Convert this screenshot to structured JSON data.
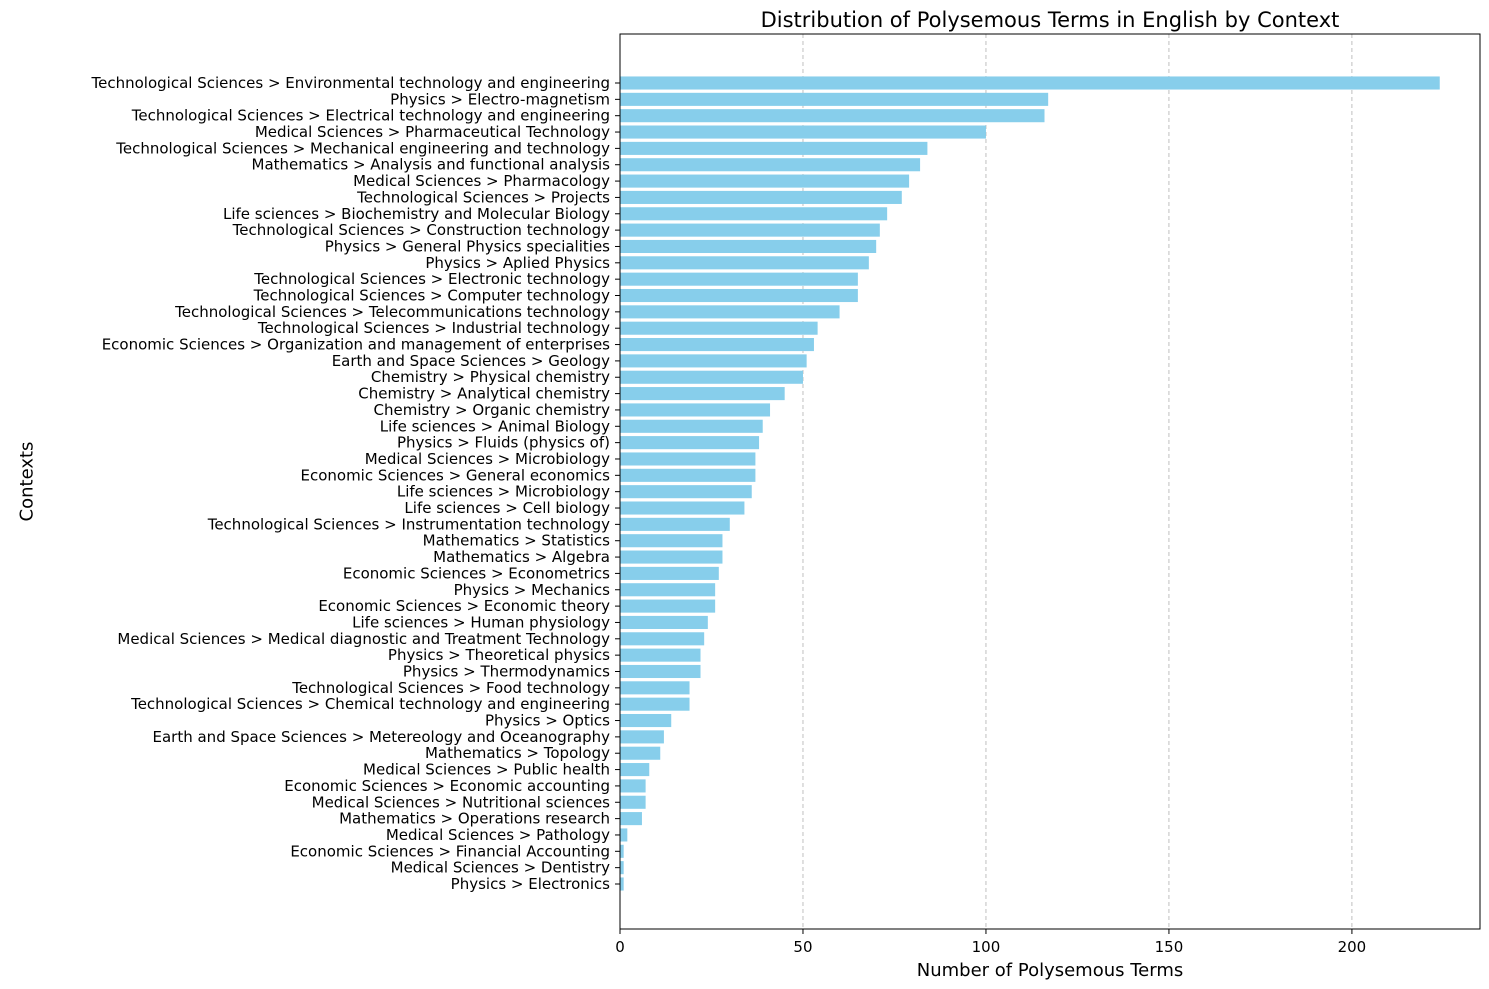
{
  "chart_data": {
    "type": "bar",
    "orientation": "horizontal",
    "title": "Distribution of Polysemous Terms in English by Context",
    "xlabel": "Number of Polysemous Terms",
    "ylabel": "Contexts",
    "xlim": [
      0,
      235
    ],
    "xticks": [
      0,
      50,
      100,
      150,
      200
    ],
    "grid": "x-dashed",
    "bar_color": "#87CEEB",
    "categories": [
      "Technological Sciences > Environmental technology and engineering",
      "Physics > Electro-magnetism",
      "Technological Sciences > Electrical technology and engineering",
      "Medical Sciences > Pharmaceutical Technology",
      "Technological Sciences > Mechanical engineering and technology",
      "Mathematics > Analysis and functional analysis",
      "Medical Sciences > Pharmacology",
      "Technological Sciences > Projects",
      "Life sciences > Biochemistry and Molecular Biology",
      "Technological Sciences > Construction technology",
      "Physics > General Physics specialities",
      "Physics > Aplied Physics",
      "Technological Sciences > Electronic technology",
      "Technological Sciences > Computer technology",
      "Technological Sciences > Telecommunications technology",
      "Technological Sciences > Industrial technology",
      "Economic Sciences > Organization and management of enterprises",
      "Earth and Space Sciences > Geology",
      "Chemistry > Physical chemistry",
      "Chemistry > Analytical chemistry",
      "Chemistry > Organic chemistry",
      "Life sciences > Animal Biology",
      "Physics > Fluids (physics of)",
      "Medical Sciences > Microbiology",
      "Economic Sciences > General economics",
      "Life sciences > Microbiology",
      "Life sciences > Cell biology",
      "Technological Sciences > Instrumentation technology",
      "Mathematics > Statistics",
      "Mathematics > Algebra",
      "Economic Sciences > Econometrics",
      "Physics > Mechanics",
      "Economic Sciences > Economic theory",
      "Life sciences > Human physiology",
      "Medical Sciences > Medical diagnostic and Treatment Technology",
      "Physics > Theoretical physics",
      "Physics > Thermodynamics",
      "Technological Sciences > Food technology",
      "Technological Sciences > Chemical technology and engineering",
      "Physics > Optics",
      "Earth and Space Sciences > Metereology and Oceanography",
      "Mathematics > Topology",
      "Medical Sciences > Public health",
      "Economic Sciences > Economic accounting",
      "Medical Sciences > Nutritional sciences",
      "Mathematics > Operations research",
      "Medical Sciences > Pathology",
      "Economic Sciences > Financial Accounting",
      "Medical Sciences > Dentistry",
      "Physics > Electronics"
    ],
    "values": [
      224,
      117,
      116,
      100,
      84,
      82,
      79,
      77,
      73,
      71,
      70,
      68,
      65,
      65,
      60,
      54,
      53,
      51,
      50,
      45,
      41,
      39,
      38,
      37,
      37,
      36,
      34,
      30,
      28,
      28,
      27,
      26,
      26,
      24,
      23,
      22,
      22,
      19,
      19,
      14,
      12,
      11,
      8,
      7,
      7,
      6,
      2,
      1,
      1,
      1
    ]
  }
}
